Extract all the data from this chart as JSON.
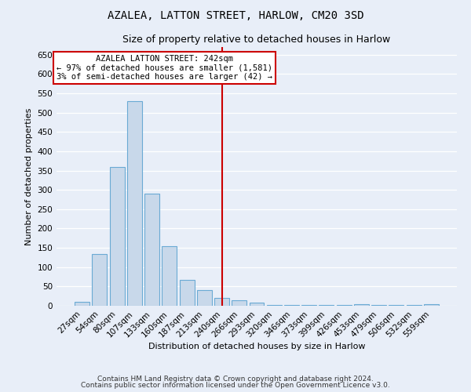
{
  "title": "AZALEA, LATTON STREET, HARLOW, CM20 3SD",
  "subtitle": "Size of property relative to detached houses in Harlow",
  "xlabel": "Distribution of detached houses by size in Harlow",
  "ylabel": "Number of detached properties",
  "categories": [
    "27sqm",
    "54sqm",
    "80sqm",
    "107sqm",
    "133sqm",
    "160sqm",
    "187sqm",
    "213sqm",
    "240sqm",
    "266sqm",
    "293sqm",
    "320sqm",
    "346sqm",
    "373sqm",
    "399sqm",
    "426sqm",
    "453sqm",
    "479sqm",
    "506sqm",
    "532sqm",
    "559sqm"
  ],
  "values": [
    10,
    135,
    360,
    530,
    290,
    155,
    67,
    40,
    20,
    15,
    8,
    3,
    3,
    3,
    3,
    3,
    5,
    3,
    3,
    3,
    5
  ],
  "bar_color": "#c8d8ea",
  "bar_edge_color": "#6aaad4",
  "marker_index": 8,
  "marker_color": "#cc0000",
  "ylim": [
    0,
    670
  ],
  "yticks": [
    0,
    50,
    100,
    150,
    200,
    250,
    300,
    350,
    400,
    450,
    500,
    550,
    600,
    650
  ],
  "annotation_title": "AZALEA LATTON STREET: 242sqm",
  "annotation_line1": "← 97% of detached houses are smaller (1,581)",
  "annotation_line2": "3% of semi-detached houses are larger (42) →",
  "annotation_box_color": "#ffffff",
  "annotation_box_edge_color": "#cc0000",
  "footnote1": "Contains HM Land Registry data © Crown copyright and database right 2024.",
  "footnote2": "Contains public sector information licensed under the Open Government Licence v3.0.",
  "bg_color": "#e8eef8",
  "plot_bg_color": "#e8eef8",
  "title_fontsize": 10,
  "subtitle_fontsize": 9,
  "ylabel_fontsize": 8,
  "xlabel_fontsize": 8,
  "tick_fontsize": 7.5,
  "footnote_fontsize": 6.5
}
